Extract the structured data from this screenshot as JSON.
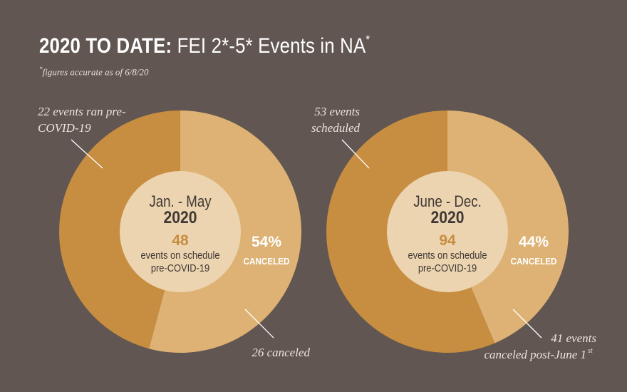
{
  "header": {
    "title_bold": "2020 TO DATE:",
    "title_rest": "FEI 2*-5* Events in NA",
    "title_sup": "*",
    "footnote_sup": "*",
    "footnote": "figures accurate as of 6/8/20"
  },
  "colors": {
    "background": "#615651",
    "dark_slice": "#c78d40",
    "light_slice": "#ddb274",
    "center": "#ecd4b0",
    "accent_number": "#c78d40",
    "text_dark": "#3f3835",
    "white": "#ffffff"
  },
  "chart_data": [
    {
      "type": "pie",
      "center_period": "Jan. - May",
      "center_year": "2020",
      "center_total": "48",
      "center_caption_line1": "events on schedule",
      "center_caption_line2": "pre-COVID-19",
      "slices": [
        {
          "label": "22 events ran pre-COVID-19",
          "value": 22,
          "color": "#c78d40"
        },
        {
          "label": "26 canceled",
          "value": 26,
          "color": "#ddb274"
        }
      ],
      "percent_label": "54%",
      "percent_caption": "CANCELED",
      "annotation_dark_line1": "22 events ran pre-",
      "annotation_dark_line2": "COVID-19",
      "annotation_light_line1": "26 canceled",
      "annotation_light_line2": ""
    },
    {
      "type": "pie",
      "center_period": "June - Dec.",
      "center_year": "2020",
      "center_total": "94",
      "center_caption_line1": "events on schedule",
      "center_caption_line2": "pre-COVID-19",
      "slices": [
        {
          "label": "53 events scheduled",
          "value": 53,
          "color": "#c78d40"
        },
        {
          "label": "41 events canceled post-June 1st",
          "value": 41,
          "color": "#ddb274"
        }
      ],
      "percent_label": "44%",
      "percent_caption": "CANCELED",
      "annotation_dark_line1": "53 events",
      "annotation_dark_line2": "scheduled",
      "annotation_light_line1": "41 events",
      "annotation_light_line2": "canceled post-June 1",
      "annotation_light_sup": "st"
    }
  ]
}
